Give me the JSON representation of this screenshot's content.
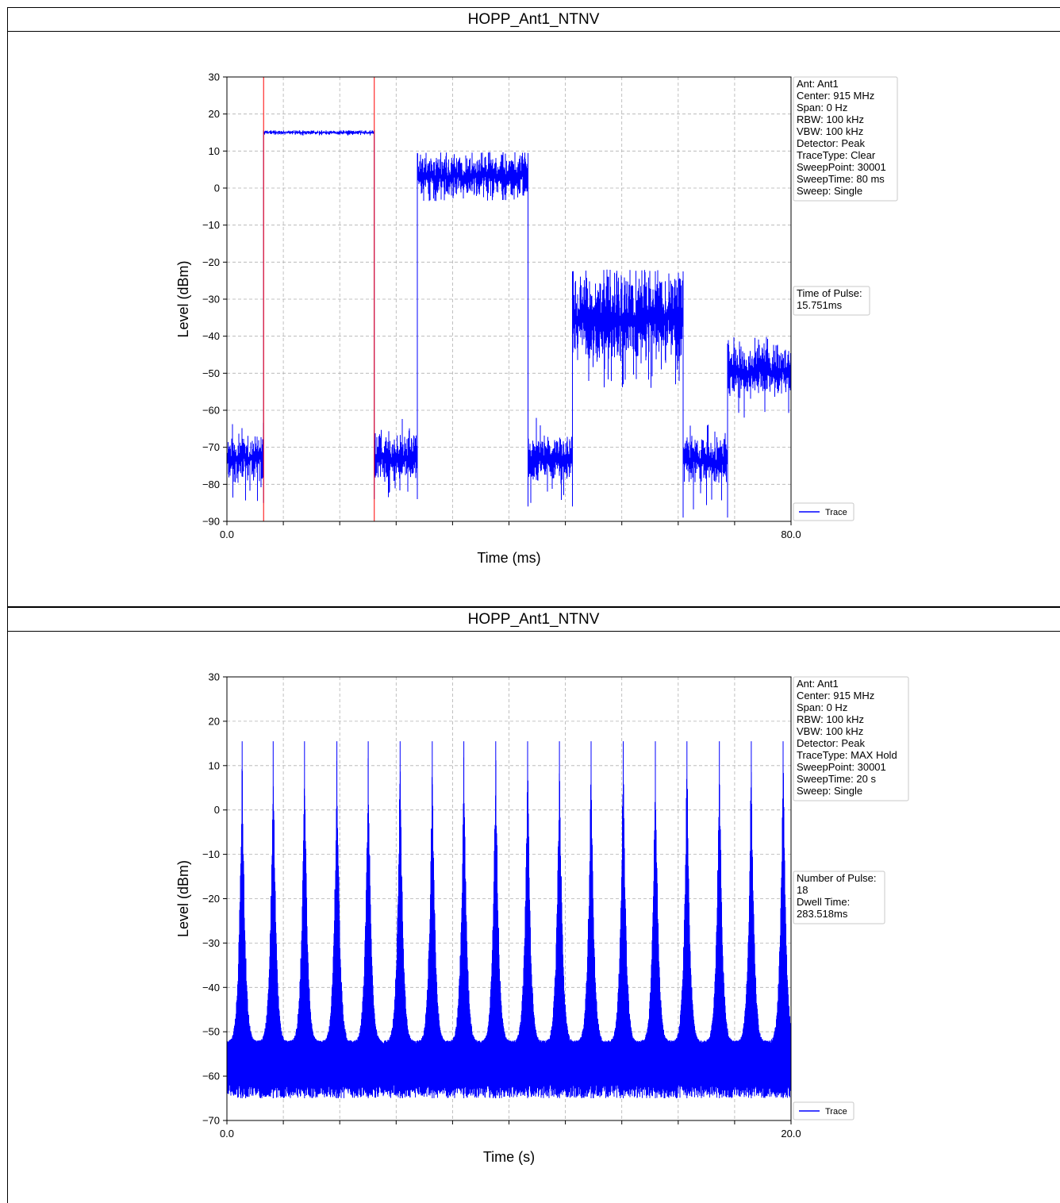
{
  "charts": [
    {
      "title": "HOPP_Ant1_NTNV",
      "chart_data": {
        "type": "line",
        "xlabel": "Time (ms)",
        "ylabel": "Level (dBm)",
        "xlim": [
          0,
          80
        ],
        "ylim": [
          -90,
          30
        ],
        "x_tick_labels": [
          "0.0",
          "80.0"
        ],
        "x_minor_ticks": [
          0,
          8,
          16,
          24,
          32,
          40,
          48,
          56,
          64,
          72,
          80
        ],
        "y_ticks": [
          30,
          20,
          10,
          0,
          -10,
          -20,
          -30,
          -40,
          -50,
          -60,
          -70,
          -80,
          -90
        ],
        "grid": true,
        "legend": {
          "label": "Trace",
          "placement": "bottom-right outside"
        },
        "series": [
          {
            "name": "Trace",
            "color": "#0000ff",
            "segments": [
              {
                "x_start": 0.0,
                "x_end": 5.2,
                "low": -80,
                "high": -66,
                "min": -85,
                "max": -63
              },
              {
                "x_start": 5.2,
                "x_end": 20.9,
                "low": 14.4,
                "high": 15.6,
                "min": 14.2,
                "max": 15.6
              },
              {
                "x_start": 20.9,
                "x_end": 27.0,
                "low": -80,
                "high": -66,
                "min": -84,
                "max": -62
              },
              {
                "x_start": 27.0,
                "x_end": 42.7,
                "low": -3,
                "high": 9.5,
                "min": -3.5,
                "max": 9.8
              },
              {
                "x_start": 42.7,
                "x_end": 49.0,
                "low": -80,
                "high": -66,
                "min": -86,
                "max": -61
              },
              {
                "x_start": 49.0,
                "x_end": 64.7,
                "low": -48,
                "high": -22.5,
                "min": -55,
                "max": -22
              },
              {
                "x_start": 64.7,
                "x_end": 71.0,
                "low": -80,
                "high": -67,
                "min": -89,
                "max": -63
              },
              {
                "x_start": 71.0,
                "x_end": 80.0,
                "low": -57,
                "high": -42,
                "min": -62,
                "max": -40
              }
            ]
          }
        ],
        "markers": [
          {
            "x": 5.2,
            "color": "#ff0000"
          },
          {
            "x": 20.9,
            "color": "#ff0000"
          }
        ],
        "info_box": [
          "Ant: Ant1",
          "Center: 915 MHz",
          "Span: 0 Hz",
          "RBW: 100 kHz",
          "VBW: 100 kHz",
          "Detector: Peak",
          "TraceType: Clear",
          "SweepPoint: 30001",
          "SweepTime: 80 ms",
          "Sweep: Single"
        ],
        "result_box": [
          "Time of Pulse:",
          " 15.751ms"
        ]
      }
    },
    {
      "title": "HOPP_Ant1_NTNV",
      "chart_data": {
        "type": "line",
        "xlabel": "Time (s)",
        "ylabel": "Level (dBm)",
        "xlim": [
          0,
          20
        ],
        "ylim": [
          -70,
          30
        ],
        "x_tick_labels": [
          "0.0",
          "20.0"
        ],
        "x_minor_ticks": [
          0,
          2,
          4,
          6,
          8,
          10,
          12,
          14,
          16,
          18,
          20
        ],
        "y_ticks": [
          30,
          20,
          10,
          0,
          -10,
          -20,
          -30,
          -40,
          -50,
          -60,
          -70
        ],
        "grid": true,
        "legend": {
          "label": "Trace",
          "placement": "bottom-right outside"
        },
        "series": [
          {
            "name": "Trace",
            "color": "#0000ff",
            "noise_floor": {
              "low": -65,
              "high": -52
            },
            "peaks": [
              {
                "x": 0.54,
                "level": 15.5
              },
              {
                "x": 1.64,
                "level": 15.5
              },
              {
                "x": 2.75,
                "level": 15.5
              },
              {
                "x": 3.9,
                "level": 15.5
              },
              {
                "x": 5.01,
                "level": 15.5
              },
              {
                "x": 6.14,
                "level": 15.5
              },
              {
                "x": 7.28,
                "level": 15.5
              },
              {
                "x": 8.4,
                "level": 15.5
              },
              {
                "x": 9.53,
                "level": 15.5
              },
              {
                "x": 10.66,
                "level": 15.5
              },
              {
                "x": 11.79,
                "level": 15.5
              },
              {
                "x": 12.91,
                "level": 15.5
              },
              {
                "x": 14.05,
                "level": 15.5
              },
              {
                "x": 15.19,
                "level": 15.5
              },
              {
                "x": 16.31,
                "level": 15.5
              },
              {
                "x": 17.46,
                "level": 15.5
              },
              {
                "x": 18.59,
                "level": 15.5
              },
              {
                "x": 19.72,
                "level": 15.5
              }
            ]
          }
        ],
        "info_box": [
          "Ant: Ant1",
          "Center: 915 MHz",
          "Span: 0 Hz",
          "RBW: 100 kHz",
          "VBW: 100 kHz",
          "Detector: Peak",
          "TraceType: MAX Hold",
          "SweepPoint: 30001",
          "SweepTime: 20 s",
          "Sweep: Single"
        ],
        "result_box": [
          "Number of Pulse:",
          " 18",
          "Dwell Time:",
          " 283.518ms"
        ]
      }
    }
  ]
}
